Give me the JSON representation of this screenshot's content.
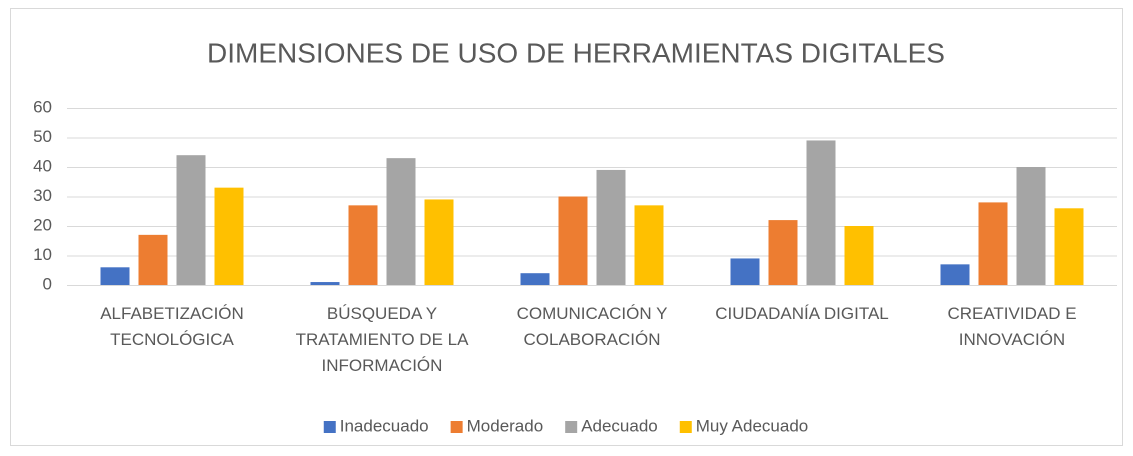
{
  "chart_data": {
    "type": "bar",
    "title": "DIMENSIONES DE USO DE HERRAMIENTAS DIGITALES",
    "categories": [
      "ALFABETIZACIÓN TECNOLÓGICA",
      "BÚSQUEDA Y TRATAMIENTO DE LA INFORMACIÓN",
      "COMUNICACIÓN Y COLABORACIÓN",
      "CIUDADANÍA DIGITAL",
      "CREATIVIDAD E INNOVACIÓN"
    ],
    "series": [
      {
        "name": "Inadecuado",
        "color": "#4472c4",
        "values": [
          6,
          1,
          4,
          9,
          7
        ]
      },
      {
        "name": "Moderado",
        "color": "#ed7d31",
        "values": [
          17,
          27,
          30,
          22,
          28
        ]
      },
      {
        "name": "Adecuado",
        "color": "#a5a5a5",
        "values": [
          44,
          43,
          39,
          49,
          40
        ]
      },
      {
        "name": "Muy Adecuado",
        "color": "#ffc000",
        "values": [
          33,
          29,
          27,
          20,
          26
        ]
      }
    ],
    "ylim": [
      0,
      60
    ],
    "yticks": [
      0,
      10,
      20,
      30,
      40,
      50,
      60
    ],
    "grid": true,
    "legend": "bottom"
  }
}
